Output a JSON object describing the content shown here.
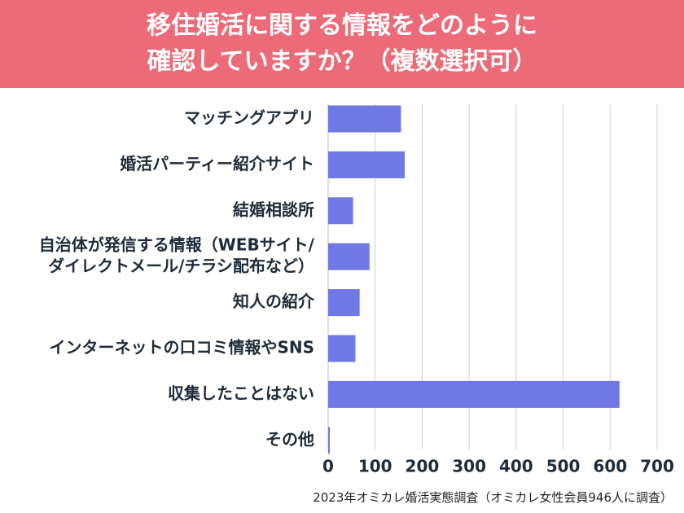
{
  "title": {
    "line1": "移住婚活に関する情報をどのように",
    "line2": "確認していますか？（複数選択可）"
  },
  "chart_data": {
    "type": "bar",
    "orientation": "horizontal",
    "categories": [
      [
        "マッチングアプリ"
      ],
      [
        "婚活パーティー紹介サイト"
      ],
      [
        "結婚相談所"
      ],
      [
        "自治体が発信する情報（WEBサイト/",
        "ダイレクトメール/チラシ配布など）"
      ],
      [
        "知人の紹介"
      ],
      [
        "インターネットの口コミ情報やSNS"
      ],
      [
        "収集したことはない"
      ],
      [
        "その他"
      ]
    ],
    "values": [
      155,
      163,
      53,
      88,
      67,
      58,
      620,
      3
    ],
    "xlim": [
      0,
      700
    ],
    "xticks": [
      "0",
      "100",
      "200",
      "300",
      "400",
      "500",
      "600",
      "700"
    ],
    "grid": true,
    "bar_color": "#6f79e6"
  },
  "footer": "2023年オミカレ婚活実態調査（オミカレ女性会員946人に調査）"
}
